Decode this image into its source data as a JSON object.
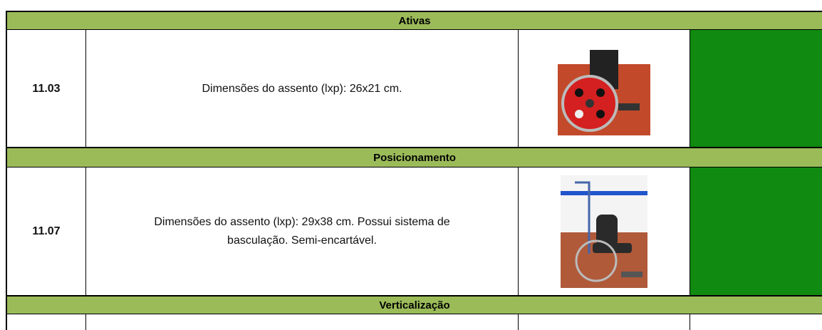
{
  "sections": [
    {
      "title": "Ativas",
      "rows": [
        {
          "code": "11.03",
          "description": "Dimensões do assento (lxp): 26x21 cm."
        }
      ]
    },
    {
      "title": "Posicionamento",
      "rows": [
        {
          "code": "11.07",
          "description": "Dimensões do assento (lxp): 29x38 cm. Possui sistema de basculação. Semi-encartável."
        }
      ]
    },
    {
      "title": "Verticalização",
      "rows": []
    }
  ]
}
